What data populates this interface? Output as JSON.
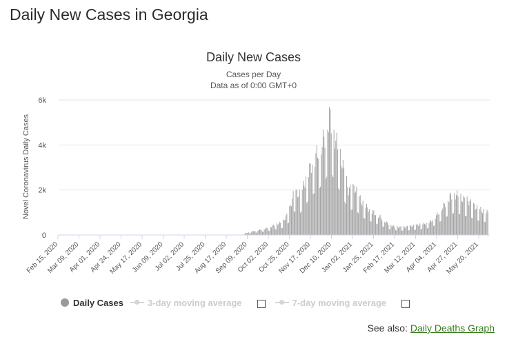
{
  "page": {
    "title": "Daily New Cases in Georgia"
  },
  "legend": {
    "daily": "Daily Cases",
    "avg3": "3-day moving average",
    "avg7": "7-day moving average"
  },
  "see_also": {
    "prefix": "See also:",
    "link": "Daily Deaths Graph"
  },
  "colors": {
    "bar": "#9e9e9e",
    "grid": "#e6e6e6",
    "link": "#3a7a1e"
  },
  "chart_data": {
    "type": "bar",
    "title": "Daily New Cases",
    "subtitle": [
      "Cases per Day",
      "Data as of 0:00 GMT+0"
    ],
    "ylabel": "Novel Coronavirus Daily Cases",
    "ylim": [
      0,
      6000
    ],
    "yticks": [
      0,
      2000,
      4000,
      6000
    ],
    "ytick_labels": [
      "0",
      "2k",
      "4k",
      "6k"
    ],
    "x_start": "2020-02-15",
    "x_end": "2021-06-05",
    "xtick_labels": [
      "Feb 15, 2020",
      "Mar 09, 2020",
      "Apr 01, 2020",
      "Apr 24, 2020",
      "May 17, 2020",
      "Jun 09, 2020",
      "Jul 02, 2020",
      "Jul 25, 2020",
      "Aug 17, 2020",
      "Sep 09, 2020",
      "Oct 02, 2020",
      "Oct 25, 2020",
      "Nov 17, 2020",
      "Dec 10, 2020",
      "Jan 02, 2021",
      "Jan 25, 2021",
      "Feb 17, 2021",
      "Mar 12, 2021",
      "Apr 04, 2021",
      "Apr 27, 2021",
      "May 20, 2021"
    ],
    "series": [
      {
        "name": "Daily Cases",
        "points": [
          [
            "2020-09-07",
            60
          ],
          [
            "2020-09-14",
            140
          ],
          [
            "2020-09-21",
            200
          ],
          [
            "2020-09-28",
            260
          ],
          [
            "2020-10-05",
            340
          ],
          [
            "2020-10-12",
            480
          ],
          [
            "2020-10-19",
            560
          ],
          [
            "2020-10-26",
            1000
          ],
          [
            "2020-11-01",
            1900
          ],
          [
            "2020-11-08",
            1800
          ],
          [
            "2020-11-15",
            2600
          ],
          [
            "2020-11-22",
            3300
          ],
          [
            "2020-11-29",
            3800
          ],
          [
            "2020-12-06",
            4500
          ],
          [
            "2020-12-10",
            5300
          ],
          [
            "2020-12-17",
            4200
          ],
          [
            "2020-12-24",
            3200
          ],
          [
            "2020-12-31",
            2000
          ],
          [
            "2021-01-07",
            2100
          ],
          [
            "2021-01-14",
            1500
          ],
          [
            "2021-01-21",
            1200
          ],
          [
            "2021-01-28",
            1000
          ],
          [
            "2021-02-04",
            800
          ],
          [
            "2021-02-11",
            550
          ],
          [
            "2021-02-18",
            400
          ],
          [
            "2021-02-25",
            350
          ],
          [
            "2021-03-04",
            360
          ],
          [
            "2021-03-11",
            400
          ],
          [
            "2021-03-18",
            450
          ],
          [
            "2021-03-25",
            500
          ],
          [
            "2021-04-01",
            600
          ],
          [
            "2021-04-08",
            900
          ],
          [
            "2021-04-15",
            1300
          ],
          [
            "2021-04-22",
            1700
          ],
          [
            "2021-04-29",
            1800
          ],
          [
            "2021-05-06",
            1600
          ],
          [
            "2021-05-13",
            1500
          ],
          [
            "2021-05-20",
            1250
          ],
          [
            "2021-05-27",
            1100
          ],
          [
            "2021-06-03",
            1000
          ]
        ]
      }
    ],
    "grid": true,
    "legend_position": "bottom-left"
  }
}
